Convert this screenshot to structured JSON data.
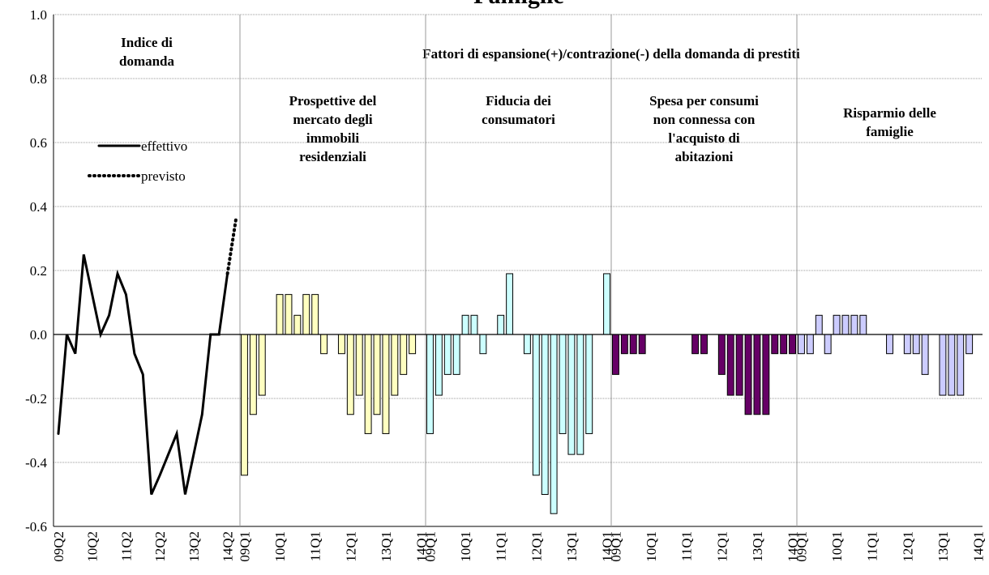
{
  "title": "Famiglie",
  "header": "Fattori di espansione(+)/contrazione(-) della domanda di prestiti",
  "chart_data": [
    {
      "type": "line",
      "title": [
        "Indice di",
        "domanda"
      ],
      "categories": [
        "09Q2",
        null,
        null,
        null,
        "10Q2",
        null,
        null,
        null,
        "11Q2",
        null,
        null,
        null,
        "12Q2",
        null,
        null,
        null,
        "13Q2",
        null,
        null,
        null,
        "14Q2",
        null
      ],
      "series": [
        {
          "name": "effettivo",
          "color": "#000000",
          "style": "solid",
          "values": [
            -0.31,
            0.0,
            -0.06,
            0.25,
            0.125,
            0.0,
            0.06,
            0.19,
            0.125,
            -0.06,
            -0.125,
            -0.5,
            -0.44,
            -0.375,
            -0.31,
            -0.5,
            -0.375,
            -0.25,
            0.0,
            0.0,
            0.19,
            null
          ]
        },
        {
          "name": "previsto",
          "color": "#000000",
          "style": "dotted",
          "values": [
            null,
            null,
            null,
            null,
            null,
            null,
            null,
            null,
            null,
            null,
            null,
            null,
            null,
            null,
            null,
            null,
            null,
            null,
            null,
            null,
            0.19,
            0.36
          ]
        }
      ],
      "ylim": [
        -0.6,
        1.0
      ],
      "yticks": [
        -0.6,
        -0.4,
        -0.2,
        {
          "value": 0,
          "label": "0.0"
        },
        0.2,
        0.4,
        0.6,
        0.8,
        {
          "value": 1,
          "label": "1.0"
        }
      ],
      "grid": true
    },
    {
      "type": "bar",
      "title": [
        "Prospettive del",
        "mercato degli",
        "immobili",
        "residenziali"
      ],
      "color": "#ffffc0",
      "categories": [
        "09Q1",
        null,
        null,
        null,
        "10Q1",
        null,
        null,
        null,
        "11Q1",
        null,
        null,
        null,
        "12Q1",
        null,
        null,
        null,
        "13Q1",
        null,
        null,
        null,
        "14Q1"
      ],
      "values": [
        -0.44,
        -0.25,
        -0.19,
        0.0,
        0.125,
        0.125,
        0.06,
        0.125,
        0.125,
        -0.06,
        0.0,
        -0.06,
        -0.25,
        -0.19,
        -0.31,
        -0.25,
        -0.31,
        -0.19,
        -0.125,
        -0.06,
        0.0
      ]
    },
    {
      "type": "bar",
      "title": [
        "Fiducia dei",
        "consumatori"
      ],
      "color": "#ccffff",
      "categories": [
        "09Q1",
        null,
        null,
        null,
        "10Q1",
        null,
        null,
        null,
        "11Q1",
        null,
        null,
        null,
        "12Q1",
        null,
        null,
        null,
        "13Q1",
        null,
        null,
        null,
        "14Q1"
      ],
      "values": [
        -0.31,
        -0.19,
        -0.125,
        -0.125,
        0.06,
        0.06,
        -0.06,
        0.0,
        0.06,
        0.19,
        0.0,
        -0.06,
        -0.44,
        -0.5,
        -0.56,
        -0.31,
        -0.375,
        -0.375,
        -0.31,
        0.0,
        0.19
      ]
    },
    {
      "type": "bar",
      "title": [
        "Spesa per consumi",
        "non connessa con",
        "l'acquisto di",
        "abitazioni"
      ],
      "color": "#660066",
      "categories": [
        "09Q1",
        null,
        null,
        null,
        "10Q1",
        null,
        null,
        null,
        "11Q1",
        null,
        null,
        null,
        "12Q1",
        null,
        null,
        null,
        "13Q1",
        null,
        null,
        null,
        "14Q1"
      ],
      "values": [
        -0.125,
        -0.06,
        -0.06,
        -0.06,
        0.0,
        0.0,
        0.0,
        0.0,
        0.0,
        -0.06,
        -0.06,
        0.0,
        -0.125,
        -0.19,
        -0.19,
        -0.25,
        -0.25,
        -0.25,
        -0.06,
        -0.06,
        -0.06
      ]
    },
    {
      "type": "bar",
      "title": [
        "Risparmio delle",
        "famiglie"
      ],
      "color": "#ccccff",
      "categories": [
        "09Q1",
        null,
        null,
        null,
        "10Q1",
        null,
        null,
        null,
        "11Q1",
        null,
        null,
        null,
        "12Q1",
        null,
        null,
        null,
        "13Q1",
        null,
        null,
        null,
        "14Q1"
      ],
      "values": [
        -0.06,
        -0.06,
        0.06,
        -0.06,
        0.06,
        0.06,
        0.06,
        0.06,
        0.0,
        0.0,
        -0.06,
        0.0,
        -0.06,
        -0.06,
        -0.125,
        0.0,
        -0.19,
        -0.19,
        -0.19,
        -0.06,
        0.0
      ]
    }
  ]
}
